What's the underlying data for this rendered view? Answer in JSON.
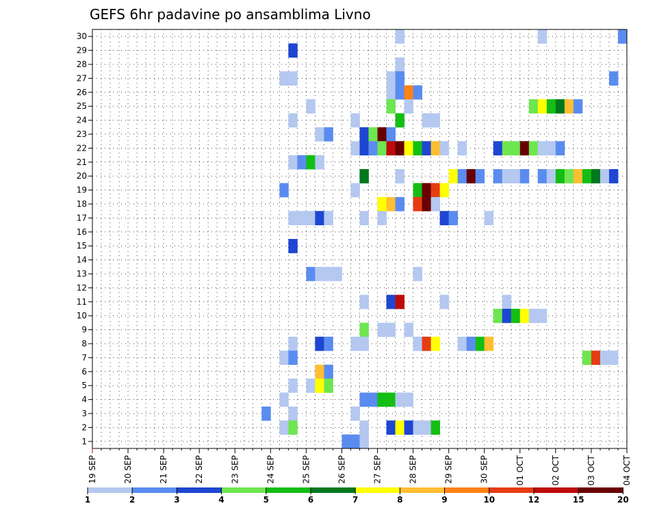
{
  "chart_data": {
    "type": "heatmap",
    "title": "GEFS 6hr padavine po ansamblima Livno",
    "xlabel": "",
    "ylabel": "",
    "x_unit": "6-hour steps from 19 SEP 00Z",
    "x_ticks": [
      "19 SEP",
      "20 SEP",
      "21 SEP",
      "22 SEP",
      "23 SEP",
      "24 SEP",
      "25 SEP",
      "26 SEP",
      "27 SEP",
      "28 SEP",
      "29 SEP",
      "30 SEP",
      "01 OCT",
      "02 OCT",
      "03 OCT",
      "04 OCT"
    ],
    "y_ticks": [
      "1",
      "2",
      "3",
      "4",
      "5",
      "6",
      "7",
      "8",
      "9",
      "10",
      "11",
      "12",
      "13",
      "14",
      "15",
      "16",
      "17",
      "18",
      "19",
      "20",
      "21",
      "22",
      "23",
      "24",
      "25",
      "26",
      "27",
      "28",
      "29",
      "30"
    ],
    "x_range": [
      0,
      60
    ],
    "y_range": [
      0.5,
      30.5
    ],
    "grid": true,
    "colorbar": {
      "labels": [
        "1",
        "2",
        "3",
        "4",
        "5",
        "6",
        "7",
        "8",
        "9",
        "10",
        "12",
        "15",
        "20"
      ],
      "colors": [
        "#b4c8f0",
        "#5a8cf0",
        "#1e46d2",
        "#6ee650",
        "#14be14",
        "#00781e",
        "#ffff00",
        "#ffbe32",
        "#ff8214",
        "#e63c14",
        "#be0a0a",
        "#690000"
      ]
    },
    "series": [
      {
        "member": 30,
        "cells": [
          [
            34.5,
            1
          ],
          [
            50.5,
            1
          ],
          [
            59.5,
            2
          ]
        ]
      },
      {
        "member": 29,
        "cells": [
          [
            22.5,
            3
          ]
        ]
      },
      {
        "member": 28,
        "cells": [
          [
            34.5,
            1
          ]
        ]
      },
      {
        "member": 27,
        "cells": [
          [
            21.5,
            1
          ],
          [
            22.5,
            1
          ],
          [
            33.5,
            1
          ],
          [
            34.5,
            2
          ],
          [
            58.5,
            2
          ]
        ]
      },
      {
        "member": 26,
        "cells": [
          [
            33.5,
            1
          ],
          [
            34.5,
            2
          ],
          [
            35.5,
            9
          ],
          [
            36.5,
            2
          ]
        ]
      },
      {
        "member": 25,
        "cells": [
          [
            24.5,
            1
          ],
          [
            33.5,
            4
          ],
          [
            35.5,
            1
          ],
          [
            49.5,
            4
          ],
          [
            50.5,
            7
          ],
          [
            51.5,
            5
          ],
          [
            52.5,
            6
          ],
          [
            53.5,
            8
          ],
          [
            54.5,
            2
          ]
        ]
      },
      {
        "member": 24,
        "cells": [
          [
            22.5,
            1
          ],
          [
            29.5,
            1
          ],
          [
            34.5,
            5
          ],
          [
            37.5,
            1
          ],
          [
            38.5,
            1
          ]
        ]
      },
      {
        "member": 23,
        "cells": [
          [
            25.5,
            1
          ],
          [
            26.5,
            2
          ],
          [
            30.5,
            3
          ],
          [
            31.5,
            4
          ],
          [
            32.5,
            12
          ],
          [
            33.5,
            2
          ]
        ]
      },
      {
        "member": 22,
        "cells": [
          [
            29.5,
            1
          ],
          [
            30.5,
            3
          ],
          [
            31.5,
            2
          ],
          [
            32.5,
            4
          ],
          [
            33.5,
            11
          ],
          [
            34.5,
            12
          ],
          [
            35.5,
            7
          ],
          [
            36.5,
            5
          ],
          [
            37.5,
            3
          ],
          [
            38.5,
            8
          ],
          [
            39.5,
            1
          ],
          [
            41.5,
            1
          ],
          [
            45.5,
            3
          ],
          [
            46.5,
            4
          ],
          [
            47.5,
            4
          ],
          [
            48.5,
            12
          ],
          [
            49.5,
            4
          ],
          [
            50.5,
            1
          ],
          [
            51.5,
            1
          ],
          [
            52.5,
            2
          ]
        ]
      },
      {
        "member": 21,
        "cells": [
          [
            22.5,
            1
          ],
          [
            23.5,
            2
          ],
          [
            24.5,
            5
          ],
          [
            25.5,
            1
          ]
        ]
      },
      {
        "member": 20,
        "cells": [
          [
            30.5,
            6
          ],
          [
            34.5,
            1
          ],
          [
            40.5,
            7
          ],
          [
            41.5,
            2
          ],
          [
            42.5,
            12
          ],
          [
            43.5,
            2
          ],
          [
            45.5,
            2
          ],
          [
            46.5,
            1
          ],
          [
            47.5,
            1
          ],
          [
            48.5,
            2
          ],
          [
            50.5,
            2
          ],
          [
            51.5,
            1
          ],
          [
            52.5,
            5
          ],
          [
            53.5,
            4
          ],
          [
            54.5,
            8
          ],
          [
            55.5,
            5
          ],
          [
            56.5,
            6
          ],
          [
            57.5,
            1
          ],
          [
            58.5,
            3
          ]
        ]
      },
      {
        "member": 19,
        "cells": [
          [
            21.5,
            2
          ],
          [
            29.5,
            1
          ],
          [
            36.5,
            5
          ],
          [
            37.5,
            12
          ],
          [
            38.5,
            10
          ],
          [
            39.5,
            7
          ]
        ]
      },
      {
        "member": 18,
        "cells": [
          [
            32.5,
            7
          ],
          [
            33.5,
            8
          ],
          [
            34.5,
            2
          ],
          [
            36.5,
            10
          ],
          [
            37.5,
            12
          ],
          [
            38.5,
            1
          ]
        ]
      },
      {
        "member": 17,
        "cells": [
          [
            22.5,
            1
          ],
          [
            23.5,
            1
          ],
          [
            24.5,
            1
          ],
          [
            25.5,
            3
          ],
          [
            26.5,
            1
          ],
          [
            30.5,
            1
          ],
          [
            32.5,
            1
          ],
          [
            39.5,
            3
          ],
          [
            40.5,
            2
          ],
          [
            44.5,
            1
          ]
        ]
      },
      {
        "member": 16,
        "cells": []
      },
      {
        "member": 15,
        "cells": [
          [
            22.5,
            3
          ]
        ]
      },
      {
        "member": 14,
        "cells": []
      },
      {
        "member": 13,
        "cells": [
          [
            24.5,
            2
          ],
          [
            25.5,
            1
          ],
          [
            26.5,
            1
          ],
          [
            27.5,
            1
          ],
          [
            36.5,
            1
          ]
        ]
      },
      {
        "member": 12,
        "cells": []
      },
      {
        "member": 11,
        "cells": [
          [
            30.5,
            1
          ],
          [
            33.5,
            3
          ],
          [
            34.5,
            11
          ],
          [
            39.5,
            1
          ],
          [
            46.5,
            1
          ]
        ]
      },
      {
        "member": 10,
        "cells": [
          [
            45.5,
            4
          ],
          [
            46.5,
            3
          ],
          [
            47.5,
            5
          ],
          [
            48.5,
            7
          ],
          [
            49.5,
            1
          ],
          [
            50.5,
            1
          ]
        ]
      },
      {
        "member": 9,
        "cells": [
          [
            30.5,
            4
          ],
          [
            32.5,
            1
          ],
          [
            33.5,
            1
          ],
          [
            35.5,
            1
          ]
        ]
      },
      {
        "member": 8,
        "cells": [
          [
            22.5,
            1
          ],
          [
            25.5,
            3
          ],
          [
            26.5,
            2
          ],
          [
            29.5,
            1
          ],
          [
            30.5,
            1
          ],
          [
            36.5,
            1
          ],
          [
            37.5,
            10
          ],
          [
            38.5,
            7
          ],
          [
            41.5,
            1
          ],
          [
            42.5,
            2
          ],
          [
            43.5,
            5
          ],
          [
            44.5,
            8
          ]
        ]
      },
      {
        "member": 7,
        "cells": [
          [
            21.5,
            1
          ],
          [
            22.5,
            2
          ],
          [
            55.5,
            4
          ],
          [
            56.5,
            10
          ],
          [
            57.5,
            1
          ],
          [
            58.5,
            1
          ]
        ]
      },
      {
        "member": 6,
        "cells": [
          [
            25.5,
            8
          ],
          [
            26.5,
            2
          ]
        ]
      },
      {
        "member": 5,
        "cells": [
          [
            22.5,
            1
          ],
          [
            24.5,
            1
          ],
          [
            25.5,
            7
          ],
          [
            26.5,
            4
          ]
        ]
      },
      {
        "member": 4,
        "cells": [
          [
            21.5,
            1
          ],
          [
            30.5,
            2
          ],
          [
            31.5,
            2
          ],
          [
            32.5,
            5
          ],
          [
            33.5,
            5
          ],
          [
            34.5,
            1
          ],
          [
            35.5,
            1
          ]
        ]
      },
      {
        "member": 3,
        "cells": [
          [
            19.5,
            2
          ],
          [
            22.5,
            1
          ],
          [
            29.5,
            1
          ]
        ]
      },
      {
        "member": 2,
        "cells": [
          [
            21.5,
            1
          ],
          [
            22.5,
            4
          ],
          [
            30.5,
            1
          ],
          [
            33.5,
            3
          ],
          [
            34.5,
            7
          ],
          [
            35.5,
            3
          ],
          [
            36.5,
            1
          ],
          [
            37.5,
            1
          ],
          [
            38.5,
            5
          ]
        ]
      },
      {
        "member": 1,
        "cells": [
          [
            28.5,
            2
          ],
          [
            29.5,
            2
          ],
          [
            30.5,
            1
          ]
        ]
      }
    ]
  }
}
